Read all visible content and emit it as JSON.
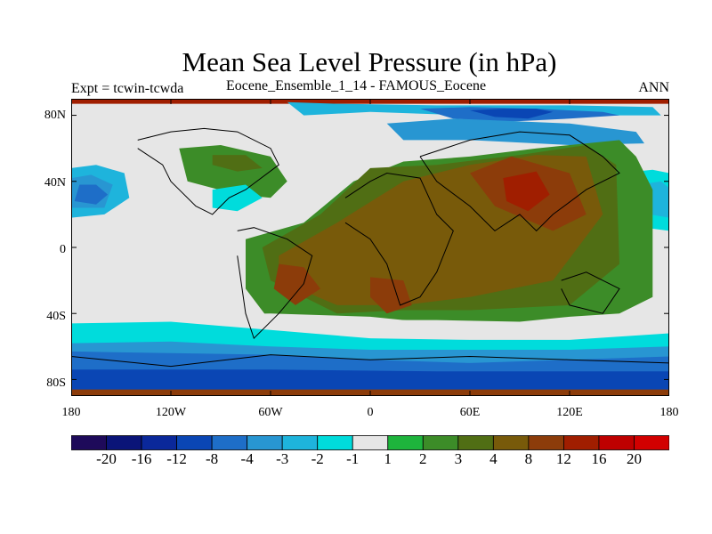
{
  "title": "Mean Sea Level Pressure (in hPa)",
  "left_label": "Expt = tcwin-tcwda",
  "center_label": "Eocene_Ensemble_1_14 - FAMOUS_Eocene",
  "right_label": "ANN",
  "lat_ticks": [
    "80N",
    "40N",
    "0",
    "40S",
    "80S"
  ],
  "lon_ticks": [
    "180",
    "120W",
    "60W",
    "0",
    "60E",
    "120E",
    "180"
  ],
  "colorbar": {
    "labels": [
      "-20",
      "-16",
      "-12",
      "-8",
      "-4",
      "-3",
      "-2",
      "-1",
      "1",
      "2",
      "3",
      "4",
      "8",
      "12",
      "16",
      "20"
    ],
    "colors": [
      "#1e0a5a",
      "#0a1478",
      "#0a289a",
      "#0a46b4",
      "#1e6ec8",
      "#2896d2",
      "#1eb4dc",
      "#00dcdc",
      "#e6e6e6",
      "#1eb43c",
      "#3c8c28",
      "#506e14",
      "#785a0a",
      "#8c3c0a",
      "#a01e00",
      "#be0000",
      "#d20000"
    ]
  },
  "chart_data": {
    "type": "heatmap",
    "title": "Mean Sea Level Pressure (in hPa)",
    "projection": "cylindrical equidistant",
    "lon_range": [
      -180,
      180
    ],
    "lat_range": [
      -90,
      90
    ],
    "levels": [
      -20,
      -16,
      -12,
      -8,
      -4,
      -3,
      -2,
      -1,
      1,
      2,
      3,
      4,
      8,
      12,
      16,
      20
    ],
    "regions": [
      {
        "name": "polar-high",
        "value": 12,
        "lons": [
          -180,
          180,
          180,
          -180
        ],
        "lats": [
          90,
          90,
          87,
          87
        ]
      },
      {
        "name": "north-band-1",
        "value": -3,
        "lons": [
          -50,
          -20,
          40,
          120,
          170,
          175,
          120,
          60,
          0,
          -40
        ],
        "lats": [
          88,
          87,
          86,
          86,
          85,
          80,
          80,
          80,
          82,
          80
        ]
      },
      {
        "name": "north-band-2",
        "value": -8,
        "lons": [
          30,
          60,
          100,
          140,
          150,
          120,
          80,
          50
        ],
        "lats": [
          84,
          85,
          84,
          82,
          80,
          78,
          76,
          78
        ]
      },
      {
        "name": "north-band-3",
        "value": -12,
        "lons": [
          60,
          80,
          100,
          110,
          95,
          75
        ],
        "lats": [
          83,
          84,
          84,
          82,
          78,
          79
        ]
      },
      {
        "name": "siberia-low",
        "value": -4,
        "lons": [
          10,
          50,
          120,
          160,
          165,
          120,
          60,
          20
        ],
        "lats": [
          75,
          78,
          75,
          70,
          63,
          62,
          65,
          65
        ]
      },
      {
        "name": "np-low-1",
        "value": -1,
        "lons": [
          -180,
          -160,
          -140,
          -135,
          -150,
          -180
        ],
        "lats": [
          55,
          57,
          50,
          30,
          15,
          12
        ]
      },
      {
        "name": "np-low-2",
        "value": -3,
        "lons": [
          -180,
          -165,
          -148,
          -145,
          -160,
          -180
        ],
        "lats": [
          48,
          50,
          45,
          30,
          20,
          18
        ]
      },
      {
        "name": "np-low-3",
        "value": -4,
        "lons": [
          -180,
          -168,
          -155,
          -160,
          -180
        ],
        "lats": [
          42,
          44,
          38,
          24,
          24
        ]
      },
      {
        "name": "np-low-4",
        "value": -8,
        "lons": [
          -175,
          -165,
          -158,
          -165,
          -178
        ],
        "lats": [
          38,
          38,
          32,
          26,
          28
        ]
      },
      {
        "name": "npe-low-1",
        "value": -2,
        "lons": [
          150,
          170,
          180,
          180,
          165,
          148
        ],
        "lats": [
          45,
          47,
          45,
          10,
          12,
          20
        ]
      },
      {
        "name": "npe-low-2",
        "value": -3,
        "lons": [
          162,
          175,
          180,
          180,
          168
        ],
        "lats": [
          38,
          40,
          36,
          18,
          20
        ]
      },
      {
        "name": "na-high-1",
        "value": 2,
        "lons": [
          -115,
          -90,
          -60,
          -50,
          -60,
          -80,
          -110
        ],
        "lats": [
          60,
          62,
          55,
          40,
          30,
          32,
          40
        ]
      },
      {
        "name": "na-high-2",
        "value": 3,
        "lons": [
          -95,
          -75,
          -65,
          -80,
          -95
        ],
        "lats": [
          56,
          56,
          48,
          46,
          50
        ]
      },
      {
        "name": "na-low",
        "value": -2,
        "lons": [
          -95,
          -75,
          -65,
          -80,
          -95
        ],
        "lats": [
          35,
          38,
          30,
          22,
          24
        ]
      },
      {
        "name": "continent-high-1",
        "value": 2,
        "lons": [
          -75,
          -40,
          -10,
          20,
          60,
          100,
          150,
          160,
          170,
          170,
          150,
          120,
          90,
          40,
          10,
          -20,
          -60,
          -75
        ],
        "lats": [
          5,
          15,
          40,
          52,
          55,
          60,
          65,
          55,
          35,
          -30,
          -40,
          -42,
          -45,
          -44,
          -44,
          -44,
          -45,
          -25
        ]
      },
      {
        "name": "continent-high-2",
        "value": 3,
        "lons": [
          -65,
          -30,
          0,
          40,
          90,
          130,
          148,
          150,
          120,
          60,
          20,
          -20,
          -60
        ],
        "lats": [
          0,
          20,
          48,
          50,
          56,
          62,
          50,
          -10,
          -35,
          -38,
          -38,
          -40,
          -20
        ]
      },
      {
        "name": "continent-high-3",
        "value": 4,
        "lons": [
          -55,
          -20,
          20,
          60,
          100,
          130,
          140,
          110,
          60,
          20,
          -20,
          -55
        ],
        "lats": [
          -5,
          15,
          40,
          50,
          56,
          55,
          20,
          -20,
          -30,
          -35,
          -35,
          -20
        ]
      },
      {
        "name": "continent-high-4",
        "value": 8,
        "lons": [
          60,
          85,
          120,
          130,
          110,
          75
        ],
        "lats": [
          45,
          55,
          45,
          20,
          10,
          25
        ]
      },
      {
        "name": "continent-high-5",
        "value": 8,
        "lons": [
          -55,
          -40,
          -30,
          -45,
          -58
        ],
        "lats": [
          -10,
          -12,
          -25,
          -35,
          -25
        ]
      },
      {
        "name": "continent-high-6",
        "value": 8,
        "lons": [
          0,
          20,
          25,
          10,
          0
        ],
        "lats": [
          -18,
          -20,
          -35,
          -40,
          -30
        ]
      },
      {
        "name": "continent-high-7",
        "value": 12,
        "lons": [
          80,
          100,
          108,
          95,
          82
        ],
        "lats": [
          42,
          46,
          32,
          22,
          28
        ]
      },
      {
        "name": "so-band-1",
        "value": -1,
        "lons": [
          -180,
          -120,
          -60,
          0,
          60,
          120,
          180,
          180,
          -180
        ],
        "lats": [
          -42,
          -41,
          -40,
          -42,
          -48,
          -50,
          -48,
          -90,
          -90
        ]
      },
      {
        "name": "so-band-2",
        "value": -2,
        "lons": [
          -180,
          -120,
          -60,
          0,
          60,
          120,
          180,
          180,
          -180
        ],
        "lats": [
          -46,
          -45,
          -50,
          -55,
          -56,
          -56,
          -52,
          -90,
          -90
        ]
      },
      {
        "name": "so-band-3",
        "value": -4,
        "lons": [
          -180,
          -120,
          -60,
          0,
          60,
          120,
          180,
          180,
          -180
        ],
        "lats": [
          -58,
          -57,
          -60,
          -62,
          -62,
          -62,
          -60,
          -90,
          -90
        ]
      },
      {
        "name": "so-band-4",
        "value": -8,
        "lons": [
          -180,
          -120,
          -60,
          0,
          60,
          120,
          180,
          180,
          -180
        ],
        "lats": [
          -63,
          -64,
          -65,
          -68,
          -70,
          -68,
          -66,
          -90,
          -90
        ]
      },
      {
        "name": "so-band-5",
        "value": -12,
        "lons": [
          -180,
          -60,
          40,
          180,
          180,
          -180
        ],
        "lats": [
          -74,
          -74,
          -75,
          -75,
          -90,
          -90
        ]
      },
      {
        "name": "south-pole-high",
        "value": 8,
        "lons": [
          -180,
          180,
          180,
          -180
        ],
        "lats": [
          -86,
          -86,
          -90,
          -90
        ]
      }
    ],
    "coastlines": [
      {
        "name": "north-america",
        "lons": [
          -140,
          -125,
          -120,
          -105,
          -95,
          -85,
          -75,
          -55,
          -60,
          -80,
          -100,
          -120,
          -140
        ],
        "lats": [
          60,
          50,
          40,
          25,
          20,
          30,
          35,
          50,
          60,
          70,
          72,
          70,
          65
        ]
      },
      {
        "name": "south-america",
        "lons": [
          -80,
          -70,
          -50,
          -35,
          -40,
          -55,
          -70,
          -75,
          -80
        ],
        "lats": [
          10,
          12,
          5,
          -5,
          -22,
          -40,
          -55,
          -40,
          -5
        ]
      },
      {
        "name": "africa-europe",
        "lons": [
          -15,
          0,
          10,
          30,
          40,
          50,
          40,
          30,
          18,
          10,
          0,
          -15
        ],
        "lats": [
          30,
          40,
          45,
          42,
          20,
          10,
          -15,
          -30,
          -35,
          -10,
          5,
          15
        ]
      },
      {
        "name": "asia",
        "lons": [
          30,
          60,
          90,
          120,
          140,
          150,
          130,
          110,
          100,
          90,
          75,
          60,
          40,
          30
        ],
        "lats": [
          55,
          65,
          70,
          68,
          55,
          45,
          35,
          20,
          10,
          20,
          10,
          25,
          40,
          55
        ]
      },
      {
        "name": "australia-antarctica",
        "lons": [
          115,
          130,
          150,
          140,
          120,
          115
        ],
        "lats": [
          -20,
          -15,
          -25,
          -40,
          -35,
          -25
        ]
      },
      {
        "name": "antarctica",
        "lons": [
          -180,
          -120,
          -60,
          0,
          60,
          120,
          180
        ],
        "lats": [
          -66,
          -72,
          -65,
          -68,
          -66,
          -68,
          -70
        ]
      }
    ]
  }
}
